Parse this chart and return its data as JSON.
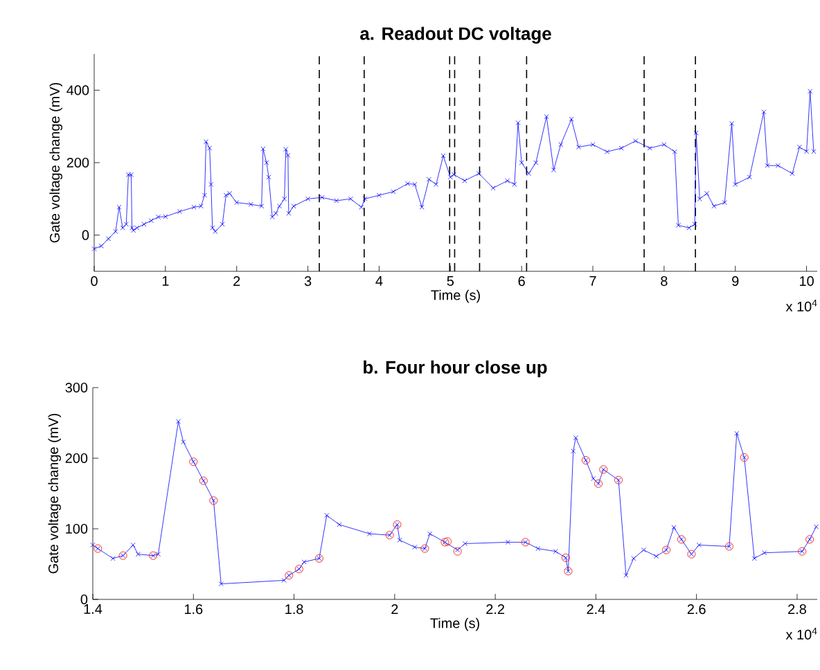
{
  "chart_data": [
    {
      "type": "line",
      "title": "a. Readout DC voltage",
      "xlabel": "Time (s)",
      "ylabel": "Gate voltage change (mV)",
      "xlim": [
        0,
        10.15
      ],
      "ylim": [
        -100,
        500
      ],
      "xticks": [
        0,
        1,
        2,
        3,
        4,
        5,
        6,
        7,
        8,
        9,
        10
      ],
      "yticks": [
        0,
        200,
        400
      ],
      "annotations": [
        "x 10$^{4}$"
      ],
      "ref_lines": [
        {
          "axis": "x",
          "value": 3.16,
          "color": "#000000",
          "line_style": "dashed"
        },
        {
          "axis": "x",
          "value": 3.79,
          "color": "#000000",
          "line_style": "dashed"
        },
        {
          "axis": "x",
          "value": 4.99,
          "color": "#000000",
          "line_style": "dashed"
        },
        {
          "axis": "x",
          "value": 5.06,
          "color": "#000000",
          "line_style": "dashed"
        },
        {
          "axis": "x",
          "value": 5.41,
          "color": "#000000",
          "line_style": "dashed"
        },
        {
          "axis": "x",
          "value": 6.07,
          "color": "#000000",
          "line_style": "dashed"
        },
        {
          "axis": "x",
          "value": 7.72,
          "color": "#000000",
          "line_style": "dashed"
        },
        {
          "axis": "x",
          "value": 8.44,
          "color": "#000000",
          "line_style": "dashed"
        }
      ],
      "series": [
        {
          "color": "#0000ff",
          "marker": "cross",
          "line_style": "solid",
          "x": [
            0,
            0.1,
            0.2,
            0.3,
            0.35,
            0.4,
            0.45,
            0.48,
            0.52,
            0.53,
            0.55,
            0.6,
            0.7,
            0.8,
            0.9,
            1.0,
            1.2,
            1.4,
            1.5,
            1.55,
            1.57,
            1.62,
            1.64,
            1.66,
            1.7,
            1.8,
            1.85,
            1.9,
            2.0,
            2.2,
            2.35,
            2.37,
            2.42,
            2.45,
            2.5,
            2.55,
            2.6,
            2.67,
            2.69,
            2.72,
            2.73,
            2.8,
            3.0,
            3.2,
            3.4,
            3.6,
            3.75,
            3.8,
            4.0,
            4.2,
            4.4,
            4.5,
            4.6,
            4.7,
            4.8,
            4.9,
            5.0,
            5.05,
            5.2,
            5.4,
            5.6,
            5.8,
            5.9,
            5.95,
            6.0,
            6.1,
            6.2,
            6.35,
            6.45,
            6.55,
            6.7,
            6.8,
            7.0,
            7.2,
            7.4,
            7.6,
            7.8,
            8.0,
            8.15,
            8.2,
            8.35,
            8.43,
            8.45,
            8.5,
            8.6,
            8.7,
            8.85,
            8.95,
            9.0,
            9.2,
            9.4,
            9.45,
            9.6,
            9.8,
            9.9,
            10.0,
            10.05,
            10.1
          ],
          "values": [
            -38,
            -30,
            -10,
            10,
            77,
            20,
            30,
            167,
            167,
            20,
            13,
            20,
            30,
            40,
            50,
            51,
            65,
            77,
            80,
            110,
            258,
            240,
            140,
            20,
            10,
            30,
            110,
            115,
            90,
            85,
            80,
            238,
            200,
            160,
            50,
            60,
            80,
            100,
            237,
            220,
            60,
            80,
            100,
            104,
            95,
            100,
            77,
            100,
            110,
            120,
            142,
            140,
            77,
            154,
            140,
            219,
            160,
            167,
            150,
            170,
            130,
            150,
            140,
            310,
            200,
            170,
            200,
            327,
            180,
            250,
            320,
            243,
            250,
            230,
            240,
            260,
            240,
            250,
            230,
            27,
            20,
            30,
            282,
            100,
            115,
            80,
            90,
            308,
            140,
            160,
            340,
            192,
            192,
            170,
            243,
            231,
            397,
            231
          ]
        }
      ]
    },
    {
      "type": "line",
      "title": "b. Four hour close up",
      "xlabel": "Time (s)",
      "ylabel": "Gate voltage change (mV)",
      "xlim": [
        1.4,
        2.84
      ],
      "ylim": [
        0,
        300
      ],
      "xticks": [
        1.4,
        1.6,
        1.8,
        2,
        2.2,
        2.4,
        2.6,
        2.8
      ],
      "yticks": [
        0,
        100,
        200,
        300
      ],
      "annotations": [
        "x 10$^{4}$"
      ],
      "series": [
        {
          "color": "#0000ff",
          "marker": "cross",
          "line_style": "solid",
          "x": [
            1.4,
            1.41,
            1.44,
            1.46,
            1.48,
            1.49,
            1.52,
            1.53,
            1.57,
            1.58,
            1.6,
            1.62,
            1.64,
            1.655,
            1.78,
            1.79,
            1.81,
            1.82,
            1.85,
            1.865,
            1.89,
            1.95,
            1.99,
            2.005,
            2.01,
            2.04,
            2.06,
            2.07,
            2.1,
            2.125,
            2.14,
            2.225,
            2.26,
            2.285,
            2.32,
            2.34,
            2.345,
            2.355,
            2.36,
            2.38,
            2.395,
            2.405,
            2.415,
            2.445,
            2.46,
            2.475,
            2.495,
            2.52,
            2.54,
            2.555,
            2.57,
            2.59,
            2.605,
            2.665,
            2.68,
            2.695,
            2.715,
            2.735,
            2.81,
            2.825,
            2.838
          ],
          "values": [
            77,
            72,
            58,
            62,
            77,
            64,
            62,
            64,
            252,
            223,
            195,
            168,
            140,
            22,
            27,
            34,
            43,
            53,
            58,
            119,
            106,
            93,
            91,
            106,
            84,
            74,
            72,
            93,
            81,
            70,
            79,
            81,
            81,
            72,
            68,
            59,
            40,
            210,
            229,
            197,
            171,
            164,
            184,
            169,
            34,
            58,
            70,
            61,
            70,
            102,
            85,
            64,
            77,
            75,
            235,
            201,
            58,
            66,
            68,
            85,
            103
          ]
        },
        {
          "type": "scatter",
          "color": "#ff0000",
          "marker": "circle",
          "x": [
            1.41,
            1.46,
            1.52,
            1.6,
            1.62,
            1.64,
            1.79,
            1.81,
            1.85,
            1.99,
            2.005,
            2.06,
            2.1,
            2.105,
            2.125,
            2.26,
            2.34,
            2.345,
            2.38,
            2.405,
            2.415,
            2.445,
            2.54,
            2.57,
            2.59,
            2.665,
            2.695,
            2.81,
            2.825
          ],
          "values": [
            72,
            62,
            62,
            195,
            168,
            140,
            34,
            43,
            58,
            91,
            106,
            72,
            81,
            82,
            68,
            81,
            59,
            40,
            197,
            164,
            184,
            169,
            70,
            85,
            64,
            75,
            201,
            68,
            85
          ]
        }
      ]
    }
  ]
}
